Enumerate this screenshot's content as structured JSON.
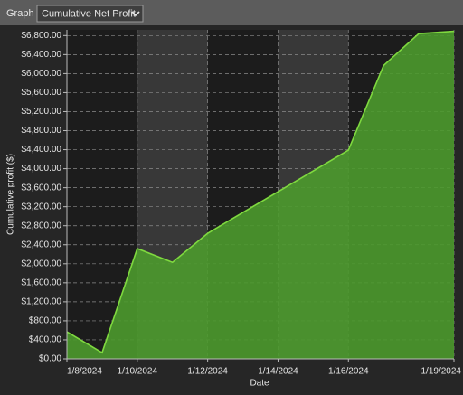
{
  "toolbar": {
    "label": "Graph",
    "selected": "Cumulative Net Profit"
  },
  "chart_data": {
    "type": "area",
    "x_label": "Date",
    "y_label": "Cumulative profit ($)",
    "x": [
      "2024-01-08",
      "2024-01-09",
      "2024-01-10",
      "2024-01-11",
      "2024-01-12",
      "2024-01-16",
      "2024-01-17",
      "2024-01-18",
      "2024-01-19"
    ],
    "values": [
      570,
      130,
      2320,
      2030,
      2640,
      4390,
      6170,
      6840,
      6890
    ],
    "color": "#4c9a2e",
    "line_color": "#7fd93f",
    "xlim": [
      "2024-01-08",
      "2024-01-19"
    ],
    "xticks": [
      {
        "value": "2024-01-08",
        "label": "1/8/2024"
      },
      {
        "value": "2024-01-10",
        "label": "1/10/2024"
      },
      {
        "value": "2024-01-12",
        "label": "1/12/2024"
      },
      {
        "value": "2024-01-14",
        "label": "1/14/2024"
      },
      {
        "value": "2024-01-16",
        "label": "1/16/2024"
      },
      {
        "value": "2024-01-19",
        "label": "1/19/2024"
      }
    ],
    "ylim": [
      0,
      6920
    ],
    "yticks": [
      {
        "value": 0,
        "label": "$0.00"
      },
      {
        "value": 400,
        "label": "$400.00"
      },
      {
        "value": 800,
        "label": "$800.00"
      },
      {
        "value": 1200,
        "label": "$1,200.00"
      },
      {
        "value": 1600,
        "label": "$1,600.00"
      },
      {
        "value": 2000,
        "label": "$2,000.00"
      },
      {
        "value": 2400,
        "label": "$2,400.00"
      },
      {
        "value": 2800,
        "label": "$2,800.00"
      },
      {
        "value": 3200,
        "label": "$3,200.00"
      },
      {
        "value": 3600,
        "label": "$3,600.00"
      },
      {
        "value": 4000,
        "label": "$4,000.00"
      },
      {
        "value": 4400,
        "label": "$4,400.00"
      },
      {
        "value": 4800,
        "label": "$4,800.00"
      },
      {
        "value": 5200,
        "label": "$5,200.00"
      },
      {
        "value": 5600,
        "label": "$5,600.00"
      },
      {
        "value": 6000,
        "label": "$6,000.00"
      },
      {
        "value": 6400,
        "label": "$6,400.00"
      },
      {
        "value": 6800,
        "label": "$6,800.00"
      }
    ],
    "grid": true
  }
}
